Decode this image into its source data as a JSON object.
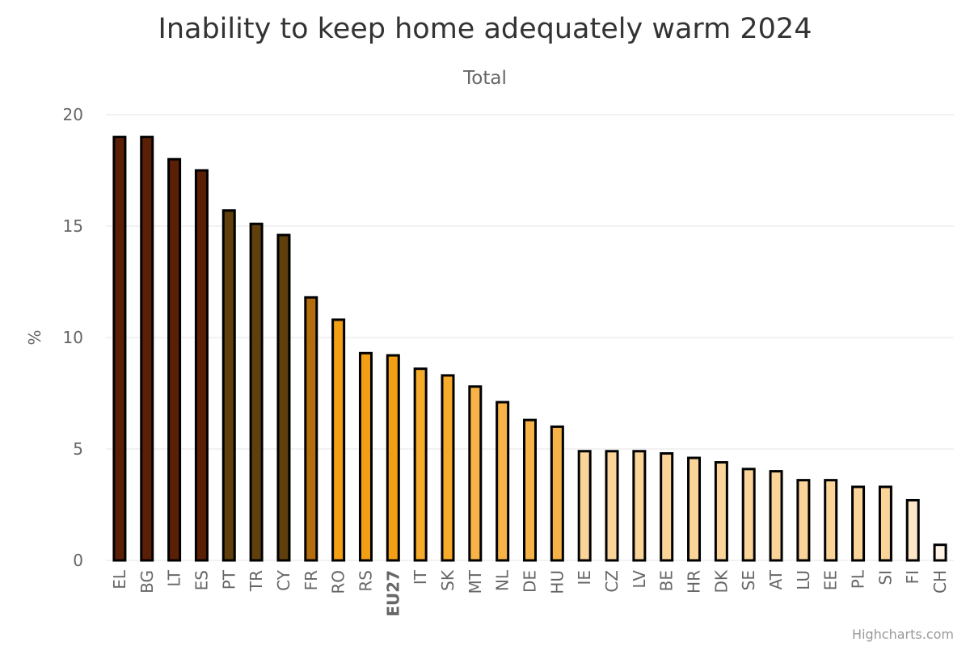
{
  "chart_data": {
    "type": "bar",
    "title": "Inability to keep home adequately warm 2024",
    "subtitle": "Total",
    "ylabel": "%",
    "xlabel": "",
    "ylim": [
      0,
      20
    ],
    "yticks": [
      0,
      5,
      10,
      15,
      20
    ],
    "grid": true,
    "legend": "none",
    "categories": [
      "EL",
      "BG",
      "LT",
      "ES",
      "PT",
      "TR",
      "CY",
      "FR",
      "RO",
      "RS",
      "EU27",
      "IT",
      "SK",
      "MT",
      "NL",
      "DE",
      "HU",
      "IE",
      "CZ",
      "LV",
      "BE",
      "HR",
      "DK",
      "SE",
      "AT",
      "LU",
      "EE",
      "PL",
      "SI",
      "FI",
      "CH"
    ],
    "values": [
      19.0,
      19.0,
      18.0,
      17.5,
      15.7,
      15.1,
      14.6,
      11.8,
      10.8,
      9.3,
      9.2,
      8.6,
      8.3,
      7.8,
      7.1,
      6.3,
      6.0,
      4.9,
      4.9,
      4.9,
      4.8,
      4.6,
      4.4,
      4.1,
      4.0,
      3.6,
      3.6,
      3.3,
      3.3,
      2.7,
      0.7
    ],
    "colors": [
      "#5b1f06",
      "#5b1f06",
      "#5b1f06",
      "#5b1f06",
      "#5f3f0b",
      "#5f3f0b",
      "#5f3f0b",
      "#b36c0e",
      "#f39f13",
      "#f39f13",
      "#f39f13",
      "#f6ab2a",
      "#f6ab2a",
      "#f7b348",
      "#f7b348",
      "#f7b348",
      "#f7b348",
      "#fbd49a",
      "#fbd49a",
      "#fbd49a",
      "#fbd49a",
      "#fbd49a",
      "#fbd49a",
      "#fbd49a",
      "#fbd49a",
      "#fbd49a",
      "#fbd49a",
      "#fbd49a",
      "#fbd49a",
      "#fde7c8",
      "#fef3e4"
    ],
    "bold_categories": [
      "EU27"
    ]
  },
  "credit": "Highcharts.com"
}
